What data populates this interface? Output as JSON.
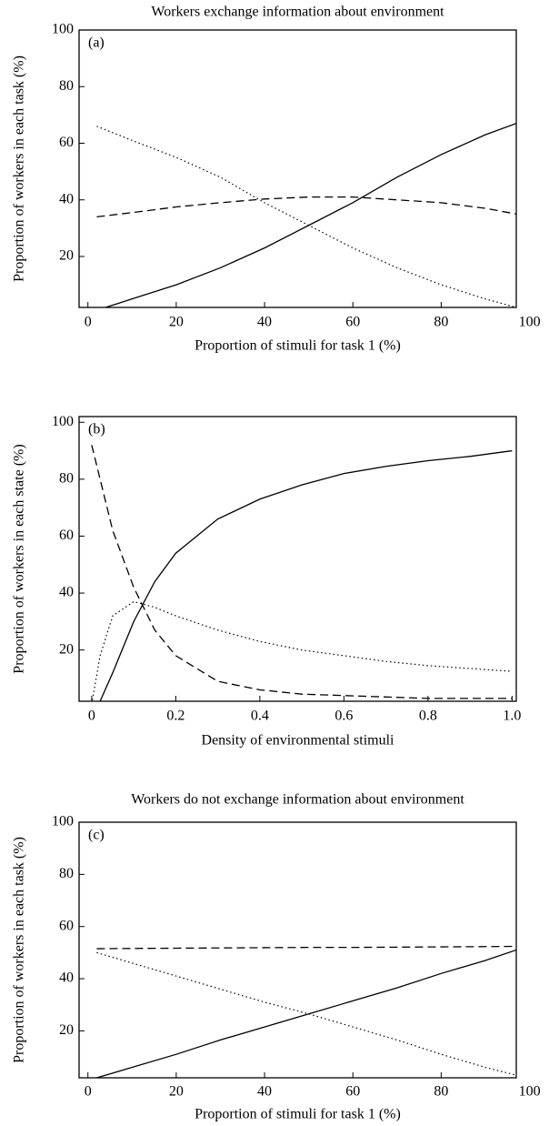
{
  "chart_data": [
    {
      "type": "line",
      "title": "Workers exchange information about environment",
      "panel_label": "(a)",
      "x_label": "Proportion of stimuli for task 1 (%)",
      "y_label": "Proportion of workers in each task (%)",
      "x": [
        2,
        10,
        20,
        30,
        40,
        50,
        60,
        70,
        80,
        90,
        97
      ],
      "series": [
        {
          "color": "#000000",
          "dash": "solid",
          "values": [
            1,
            5,
            10,
            16,
            23,
            31,
            39,
            48,
            56,
            63,
            67
          ]
        },
        {
          "color": "#000000",
          "dash": "dashed",
          "values": [
            34,
            35.5,
            37.5,
            39,
            40.3,
            41,
            41,
            40,
            39,
            37,
            35
          ]
        },
        {
          "color": "#000000",
          "dash": "dotted",
          "values": [
            66,
            61,
            55,
            48,
            39,
            31,
            23,
            16,
            10,
            5,
            2
          ]
        }
      ],
      "xlim": [
        -2,
        97
      ],
      "xticks": [
        0,
        20,
        40,
        60,
        80,
        100
      ],
      "ylim": [
        2,
        100
      ],
      "yticks": [
        20,
        40,
        60,
        80,
        100
      ]
    },
    {
      "type": "line",
      "panel_label": "(b)",
      "x_label": "Density of environmental stimuli",
      "y_label": "Proportion of workers in each state (%)",
      "x": [
        0,
        0.02,
        0.05,
        0.1,
        0.15,
        0.2,
        0.3,
        0.4,
        0.5,
        0.6,
        0.7,
        0.8,
        0.9,
        1.0
      ],
      "series": [
        {
          "color": "#000000",
          "dash": "solid",
          "values": [
            1,
            2,
            12,
            30,
            44,
            54,
            66,
            73,
            78,
            82,
            84.5,
            86.5,
            88,
            90
          ]
        },
        {
          "color": "#000000",
          "dash": "dashed",
          "values": [
            92,
            80,
            62,
            42,
            27,
            18,
            9,
            6,
            4.5,
            4,
            3.5,
            3,
            3,
            3
          ]
        },
        {
          "color": "#000000",
          "dash": "dotted",
          "values": [
            1,
            18,
            32,
            37,
            35,
            32,
            27,
            23,
            20,
            18,
            16,
            14.5,
            13.5,
            12.5
          ]
        }
      ],
      "xlim": [
        -0.03,
        1.01
      ],
      "xticks": [
        0,
        0.2,
        0.4,
        0.6,
        0.8,
        {
          "value": 1,
          "label": "1.0"
        }
      ],
      "ylim": [
        2,
        102
      ],
      "yticks": [
        20,
        40,
        60,
        80,
        100
      ]
    },
    {
      "type": "line",
      "title": "Workers do not exchange information about environment",
      "panel_label": "(c)",
      "x_label": "Proportion of stimuli for task 1 (%)",
      "y_label": "Proportion of workers in each task (%)",
      "x": [
        2,
        10,
        20,
        30,
        40,
        50,
        60,
        70,
        80,
        90,
        97
      ],
      "series": [
        {
          "color": "#000000",
          "dash": "solid",
          "values": [
            2,
            6,
            11,
            16.5,
            21.5,
            26.5,
            31.5,
            36.5,
            42,
            47,
            51
          ]
        },
        {
          "color": "#000000",
          "dash": "dashed",
          "values": [
            51.5,
            51.6,
            51.7,
            51.8,
            51.9,
            52,
            52,
            52.1,
            52.2,
            52.3,
            52.4
          ]
        },
        {
          "color": "#000000",
          "dash": "dotted",
          "values": [
            50,
            46,
            41,
            36,
            31,
            26.5,
            21.5,
            16.5,
            11,
            6,
            3
          ]
        }
      ],
      "xlim": [
        -2,
        97
      ],
      "xticks": [
        0,
        20,
        40,
        60,
        80,
        100
      ],
      "ylim": [
        2,
        100
      ],
      "yticks": [
        20,
        40,
        60,
        80,
        100
      ]
    }
  ]
}
